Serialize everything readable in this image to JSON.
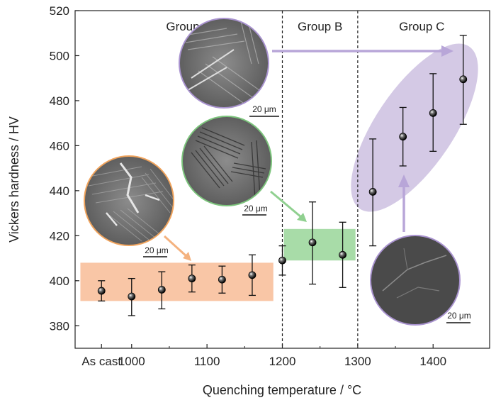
{
  "chart_data": {
    "type": "scatter",
    "xlabel": "Quenching temperature / °C",
    "ylabel": "Vickers hardness / HV",
    "xlim": [
      925,
      1475
    ],
    "ylim": [
      370,
      520
    ],
    "x_ticks": [
      {
        "value": 960,
        "label": "As cast"
      },
      {
        "value": 1000,
        "label": "1000"
      },
      {
        "value": 1100,
        "label": "1100"
      },
      {
        "value": 1200,
        "label": "1200"
      },
      {
        "value": 1300,
        "label": "1300"
      },
      {
        "value": 1400,
        "label": "1400"
      }
    ],
    "y_ticks": [
      380,
      400,
      420,
      440,
      460,
      480,
      500,
      520
    ],
    "dividers": [
      1200,
      1300
    ],
    "series": [
      {
        "points": [
          {
            "x": 960,
            "y": 395.5,
            "err_low": 391,
            "err_high": 400
          },
          {
            "x": 1000,
            "y": 393,
            "err_low": 384.5,
            "err_high": 401
          },
          {
            "x": 1040,
            "y": 396,
            "err_low": 387.5,
            "err_high": 404
          },
          {
            "x": 1080,
            "y": 401,
            "err_low": 395,
            "err_high": 407
          },
          {
            "x": 1120,
            "y": 400.5,
            "err_low": 394.5,
            "err_high": 406.5
          },
          {
            "x": 1160,
            "y": 402.5,
            "err_low": 393.5,
            "err_high": 411.5
          },
          {
            "x": 1200,
            "y": 409,
            "err_low": 402.5,
            "err_high": 415.5
          },
          {
            "x": 1240,
            "y": 417,
            "err_low": 398.5,
            "err_high": 435
          },
          {
            "x": 1280,
            "y": 411.5,
            "err_low": 397,
            "err_high": 426
          },
          {
            "x": 1320,
            "y": 439.5,
            "err_low": 415.5,
            "err_high": 463
          },
          {
            "x": 1360,
            "y": 464,
            "err_low": 451,
            "err_high": 477
          },
          {
            "x": 1400,
            "y": 474.5,
            "err_low": 457.5,
            "err_high": 492
          },
          {
            "x": 1440,
            "y": 489.5,
            "err_low": 469.5,
            "err_high": 509
          }
        ]
      }
    ],
    "groups": [
      {
        "label": "Group A",
        "label_x": 1075,
        "label_y": 513,
        "color": "#f9c6a6",
        "band": {
          "x0": 932,
          "x1": 1188,
          "y0": 391,
          "y1": 408
        }
      },
      {
        "label": "Group B",
        "label_x": 1250,
        "label_y": 513,
        "color": "#a8dca8",
        "band": {
          "x0": 1202,
          "x1": 1297,
          "y0": 409,
          "y1": 423
        }
      },
      {
        "label": "Group C",
        "label_x": 1385,
        "label_y": 513,
        "color": "#cdbfe0"
      }
    ],
    "micrographs": [
      {
        "name": "group-a-micrograph",
        "scale_label": "20 μm",
        "border": "#f0a35c"
      },
      {
        "name": "group-b-micrograph",
        "scale_label": "20 μm",
        "border": "#7cc47c"
      },
      {
        "name": "group-c-top-micrograph",
        "scale_label": "20 μm",
        "border": "#a993cf"
      },
      {
        "name": "group-c-bottom-micrograph",
        "scale_label": "20 μm",
        "border": "#a993cf"
      }
    ]
  }
}
